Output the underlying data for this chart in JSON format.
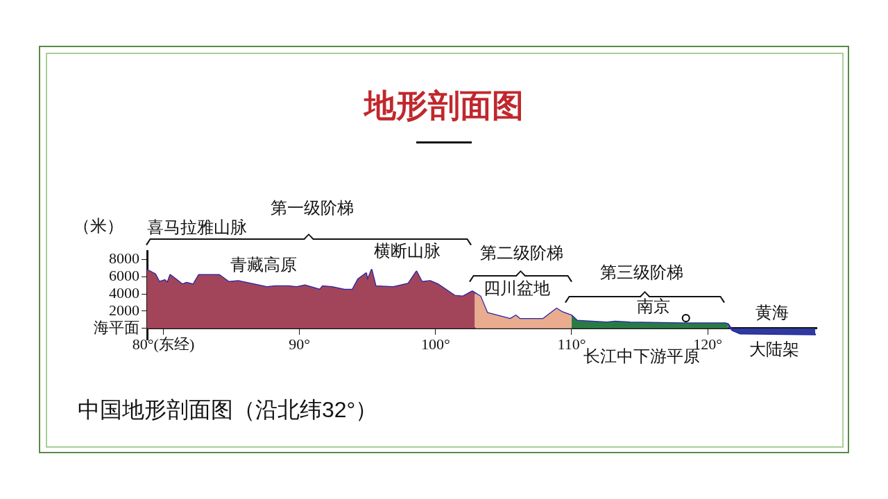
{
  "chart_data": {
    "type": "area",
    "title": "地形剖面图",
    "ylabel": "（米）",
    "grid": false,
    "xlim": [
      78.8,
      128
    ],
    "xticks": [
      {
        "value": 80,
        "label": "80°(东经)"
      },
      {
        "value": 90,
        "label": "90°"
      },
      {
        "value": 100,
        "label": "100°"
      },
      {
        "value": 110,
        "label": "110°"
      },
      {
        "value": 120,
        "label": "120°"
      }
    ],
    "ylim": [
      -1300,
      9000
    ],
    "yticks": [
      {
        "value": 0,
        "label": "海平面"
      },
      2000,
      4000,
      6000,
      8000
    ],
    "series": [
      {
        "color": "#a3455a",
        "x": [
          78.8,
          79.4,
          79.7,
          80.1,
          80.3,
          80.5,
          81.0,
          81.4,
          81.7,
          82.2,
          82.6,
          84.1,
          84.8,
          85.5,
          87.6,
          88.2,
          89.2,
          89.8,
          90.4,
          91.5,
          91.7,
          92.4,
          93.3,
          93.9,
          94.3,
          94.9,
          95.0,
          95.3,
          95.6,
          96.9,
          98.0,
          98.6,
          99.0,
          99.6,
          100.2,
          101.4,
          102.0,
          102.7,
          102.9
        ],
        "values": [
          6800,
          6300,
          5400,
          5600,
          5300,
          6200,
          5600,
          5100,
          5300,
          5100,
          6200,
          6200,
          5400,
          5500,
          4800,
          4900,
          4900,
          4800,
          5000,
          4500,
          4900,
          4800,
          4500,
          4500,
          5700,
          6400,
          5600,
          6800,
          4900,
          4800,
          5200,
          6600,
          5400,
          5500,
          5100,
          3800,
          3700,
          4300,
          4100
        ]
      },
      {
        "color": "#e9ac8e",
        "x": [
          102.9,
          103.3,
          103.8,
          105.5,
          105.9,
          106.2,
          107.9,
          108.9,
          109.3,
          110.0
        ],
        "values": [
          4100,
          3700,
          1800,
          1100,
          1500,
          1100,
          1100,
          2300,
          1900,
          1500
        ]
      },
      {
        "color": "#2a7a45",
        "x": [
          110.0,
          110.4,
          112.6,
          113.2,
          114.3,
          118.2,
          121.3,
          121.5
        ],
        "values": [
          1500,
          900,
          700,
          800,
          700,
          600,
          600,
          500
        ]
      },
      {
        "color": "#2e3a9e",
        "x": [
          121.5,
          121.8,
          122.4,
          127.9
        ],
        "values": [
          500,
          -200,
          -600,
          -700
        ]
      },
      {
        "type": "line",
        "color": "#2323a6",
        "x": [
          78.8,
          79.4,
          79.7,
          80.1,
          80.3,
          80.5,
          81.0,
          81.4,
          81.7,
          82.2,
          82.6,
          84.1,
          84.8,
          85.5,
          87.6,
          88.2,
          89.2,
          89.8,
          90.4,
          91.5,
          91.7,
          92.4,
          93.3,
          93.9,
          94.3,
          94.9,
          95.0,
          95.3,
          95.6,
          96.9,
          98.0,
          98.6,
          99.0,
          99.6,
          100.2,
          101.4,
          102.0,
          102.7,
          102.9,
          103.3,
          103.8,
          105.5,
          105.9,
          106.2,
          107.9,
          108.9,
          109.3,
          110.0,
          110.4,
          112.6,
          113.2,
          114.3,
          118.2,
          121.3,
          121.5,
          121.8,
          122.4,
          127.9
        ],
        "values": [
          6800,
          6300,
          5400,
          5600,
          5300,
          6200,
          5600,
          5100,
          5300,
          5100,
          6200,
          6200,
          5400,
          5500,
          4800,
          4900,
          4900,
          4800,
          5000,
          4500,
          4900,
          4800,
          4500,
          4500,
          5700,
          6400,
          5600,
          6800,
          4900,
          4800,
          5200,
          6600,
          5400,
          5500,
          5100,
          3800,
          3700,
          4300,
          4100,
          3700,
          1800,
          1100,
          1500,
          1100,
          1100,
          2300,
          1900,
          1500,
          900,
          700,
          800,
          700,
          600,
          600,
          500,
          -200,
          -600,
          -700
        ]
      },
      {
        "type": "scatter",
        "marker": "circle",
        "color": "#000000",
        "x": [
          118.4
        ],
        "values": [
          1200
        ]
      }
    ],
    "annotations": [
      "青藏高原",
      "横断山脉",
      "四川盆地",
      "南京",
      "黄海",
      "喜马拉雅山脉",
      "长江中下游平原",
      "大陆架",
      "第一级阶梯",
      "第二级阶梯",
      "第三级阶梯",
      "中国地形剖面图（沿北纬32°）"
    ]
  }
}
